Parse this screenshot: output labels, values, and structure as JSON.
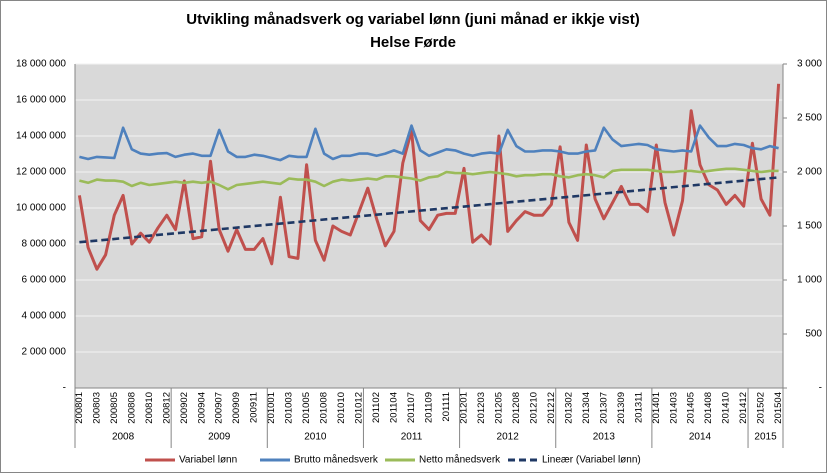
{
  "chart_data": {
    "type": "line",
    "title": "Utvikling månadsverk og variabel lønn (juni månad er ikkje vist)",
    "subtitle": "Helse Førde",
    "categories": [
      "200801",
      null,
      "200803",
      null,
      "200805",
      null,
      "200808",
      null,
      "200810",
      null,
      "200812",
      null,
      "200902",
      null,
      "200904",
      null,
      "200907",
      null,
      "200909",
      null,
      "200911",
      null,
      "201001",
      null,
      "201003",
      null,
      "201005",
      null,
      "201008",
      null,
      "201010",
      null,
      "201012",
      null,
      "201102",
      null,
      "201104",
      null,
      "201107",
      null,
      "201109",
      null,
      "201111",
      null,
      "201201",
      null,
      "201203",
      null,
      "201205",
      null,
      "201208",
      null,
      "201210",
      null,
      "201212",
      null,
      "201302",
      null,
      "201304",
      null,
      "201307",
      null,
      "201309",
      null,
      "201311",
      null,
      "201401",
      null,
      "201403",
      null,
      "201405",
      null,
      "201408",
      null,
      "201410",
      null,
      "201412",
      null,
      "201502",
      null,
      "201504"
    ],
    "year_labels": [
      "2008",
      "2009",
      "2010",
      "2011",
      "2012",
      "2013",
      "2014",
      "2015"
    ],
    "series": [
      {
        "name": "Variabel lønn",
        "color": "#c0504d",
        "axis": "y",
        "values": [
          10700000,
          7800000,
          6600000,
          7400000,
          9600000,
          10700000,
          8000000,
          8600000,
          8100000,
          8900000,
          9600000,
          8800000,
          11500000,
          8300000,
          8400000,
          12600000,
          8800000,
          7600000,
          8800000,
          7700000,
          7700000,
          8300000,
          6900000,
          10600000,
          7300000,
          7200000,
          12400000,
          8200000,
          7100000,
          9000000,
          8700000,
          8500000,
          9800000,
          11100000,
          9400000,
          7900000,
          8700000,
          12500000,
          14300000,
          9300000,
          8800000,
          9600000,
          9700000,
          9700000,
          12200000,
          8100000,
          8500000,
          8000000,
          14000000,
          8700000,
          9300000,
          9800000,
          9600000,
          9600000,
          10200000,
          13400000,
          9200000,
          8200000,
          13500000,
          10500000,
          9400000,
          10300000,
          11200000,
          10200000,
          10200000,
          9800000,
          13500000,
          10300000,
          8500000,
          10400000,
          15400000,
          12400000,
          11300000,
          11000000,
          10200000,
          10700000,
          10100000,
          13600000,
          10500000,
          9600000,
          16900000
        ]
      },
      {
        "name": "Brutto månedsverk",
        "color": "#4f81bd",
        "axis": "y2",
        "values": [
          2140,
          2120,
          2140,
          2135,
          2130,
          2410,
          2210,
          2170,
          2160,
          2170,
          2175,
          2140,
          2160,
          2170,
          2150,
          2150,
          2390,
          2190,
          2140,
          2140,
          2160,
          2150,
          2130,
          2110,
          2150,
          2140,
          2140,
          2400,
          2170,
          2120,
          2150,
          2150,
          2170,
          2170,
          2150,
          2170,
          2200,
          2170,
          2430,
          2200,
          2150,
          2180,
          2210,
          2200,
          2170,
          2150,
          2170,
          2180,
          2170,
          2390,
          2240,
          2190,
          2190,
          2200,
          2200,
          2190,
          2170,
          2170,
          2190,
          2200,
          2410,
          2300,
          2240,
          2250,
          2260,
          2250,
          2210,
          2200,
          2190,
          2200,
          2190,
          2430,
          2320,
          2240,
          2240,
          2260,
          2250,
          2220,
          2210,
          2240,
          2220
        ]
      },
      {
        "name": "Netto månedsverk",
        "color": "#9bbb59",
        "axis": "y2",
        "values": [
          1920,
          1900,
          1930,
          1920,
          1920,
          1910,
          1870,
          1900,
          1880,
          1890,
          1900,
          1910,
          1900,
          1910,
          1900,
          1910,
          1880,
          1840,
          1880,
          1890,
          1900,
          1910,
          1900,
          1890,
          1940,
          1930,
          1930,
          1910,
          1870,
          1910,
          1930,
          1920,
          1930,
          1940,
          1930,
          1960,
          1960,
          1950,
          1940,
          1920,
          1950,
          1960,
          2000,
          1990,
          1990,
          1980,
          1990,
          2000,
          1990,
          1980,
          1960,
          1970,
          1970,
          1980,
          1980,
          1960,
          1950,
          1970,
          1980,
          1970,
          1950,
          2010,
          2020,
          2020,
          2020,
          2020,
          2010,
          2000,
          2000,
          2010,
          2010,
          2000,
          2010,
          2020,
          2030,
          2030,
          2020,
          2010,
          2000,
          2010,
          2010
        ]
      }
    ],
    "trend": {
      "name": "Lineær (Variabel lønn)",
      "color": "#1f3864",
      "axis": "y",
      "values": [
        8100000,
        11700000
      ]
    },
    "ylim": [
      0,
      18000000
    ],
    "yticks": [
      {
        "value": 0,
        "label": "-"
      },
      {
        "value": 2000000,
        "label": "2 000 000"
      },
      {
        "value": 4000000,
        "label": "4 000 000"
      },
      {
        "value": 6000000,
        "label": "6 000 000"
      },
      {
        "value": 8000000,
        "label": "8 000 000"
      },
      {
        "value": 10000000,
        "label": "10 000 000"
      },
      {
        "value": 12000000,
        "label": "12 000 000"
      },
      {
        "value": 14000000,
        "label": "14 000 000"
      },
      {
        "value": 16000000,
        "label": "16 000 000"
      },
      {
        "value": 18000000,
        "label": "18 000 000"
      }
    ],
    "y2lim": [
      0,
      3000
    ],
    "y2ticks": [
      {
        "value": 0,
        "label": "-"
      },
      500,
      {
        "value": 1000,
        "label": "1 000"
      },
      {
        "value": 1500,
        "label": "1 500"
      },
      {
        "value": 2000,
        "label": "2 000"
      },
      {
        "value": 2500,
        "label": "2 500"
      },
      {
        "value": 3000,
        "label": "3 000"
      }
    ],
    "grid": true
  }
}
